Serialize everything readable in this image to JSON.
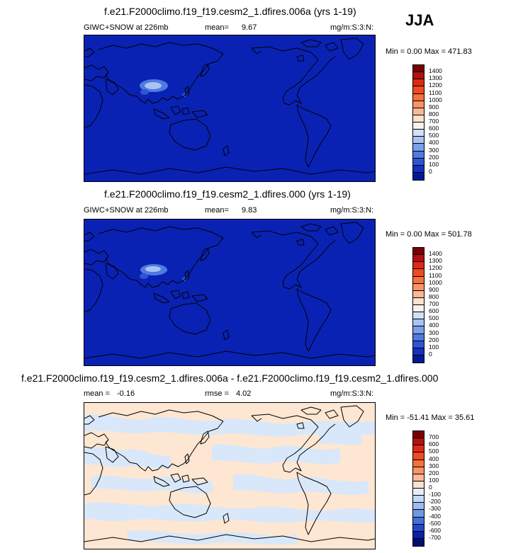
{
  "season": "JJA",
  "colors": {
    "ocean_blue": "#0a22b3",
    "diff_light_blue": "#d8e8fa",
    "diff_peach": "#fde6d2",
    "coast": "#000000"
  },
  "panels": [
    {
      "title": "f.e21.F2000climo.f19_f19.cesm2_1.dfires.006a (yrs 1-19)",
      "left_label": "GIWC+SNOW at 226mb",
      "mean_label": "mean=",
      "mean_value": "9.67",
      "units": "mg/m:S:3:N:",
      "minmax": "Min =   0.00 Max = 471.83",
      "colorbar_labels": [
        "1400",
        "1300",
        "1200",
        "1100",
        "1000",
        "900",
        "800",
        "700",
        "600",
        "500",
        "400",
        "300",
        "200",
        "100",
        "0"
      ],
      "colorbar_colors": [
        "#7a0000",
        "#b50f0f",
        "#de2a14",
        "#f04a1e",
        "#f8703a",
        "#fa9466",
        "#fcb898",
        "#fde2cc",
        "#f9f2ec",
        "#cfe0f8",
        "#a9c4f2",
        "#7aa0ea",
        "#4f7ae0",
        "#2f55d6",
        "#1530c0",
        "#001a96"
      ]
    },
    {
      "title": "f.e21.F2000climo.f19_f19.cesm2_1.dfires.000 (yrs 1-19)",
      "left_label": "GIWC+SNOW at 226mb",
      "mean_label": "mean=",
      "mean_value": "9.83",
      "units": "mg/m:S:3:N:",
      "minmax": "Min =   0.00 Max = 501.78",
      "colorbar_labels": [
        "1400",
        "1300",
        "1200",
        "1100",
        "1000",
        "900",
        "800",
        "700",
        "600",
        "500",
        "400",
        "300",
        "200",
        "100",
        "0"
      ],
      "colorbar_colors": [
        "#7a0000",
        "#b50f0f",
        "#de2a14",
        "#f04a1e",
        "#f8703a",
        "#fa9466",
        "#fcb898",
        "#fde2cc",
        "#f9f2ec",
        "#cfe0f8",
        "#a9c4f2",
        "#7aa0ea",
        "#4f7ae0",
        "#2f55d6",
        "#1530c0",
        "#001a96"
      ]
    },
    {
      "title": "f.e21.F2000climo.f19_f19.cesm2_1.dfires.006a - f.e21.F2000climo.f19_f19.cesm2_1.dfires.000",
      "mean_label": "mean =",
      "mean_value": "-0.16",
      "rmse_label": "rmse =",
      "rmse_value": "4.02",
      "units": "mg/m:S:3:N:",
      "minmax": "Min = -51.41 Max =  35.61",
      "colorbar_labels": [
        "700",
        "600",
        "500",
        "400",
        "300",
        "200",
        "100",
        "0",
        "-100",
        "-200",
        "-300",
        "-400",
        "-500",
        "-600",
        "-700"
      ],
      "colorbar_colors": [
        "#7a0000",
        "#b50f0f",
        "#de2a14",
        "#f04a1e",
        "#f8703a",
        "#fa9466",
        "#fcb898",
        "#fde2cc",
        "#e4eefb",
        "#c4d8f6",
        "#9dbcef",
        "#7096e6",
        "#4470dc",
        "#2248cc",
        "#0a22a8",
        "#00106e"
      ]
    }
  ]
}
